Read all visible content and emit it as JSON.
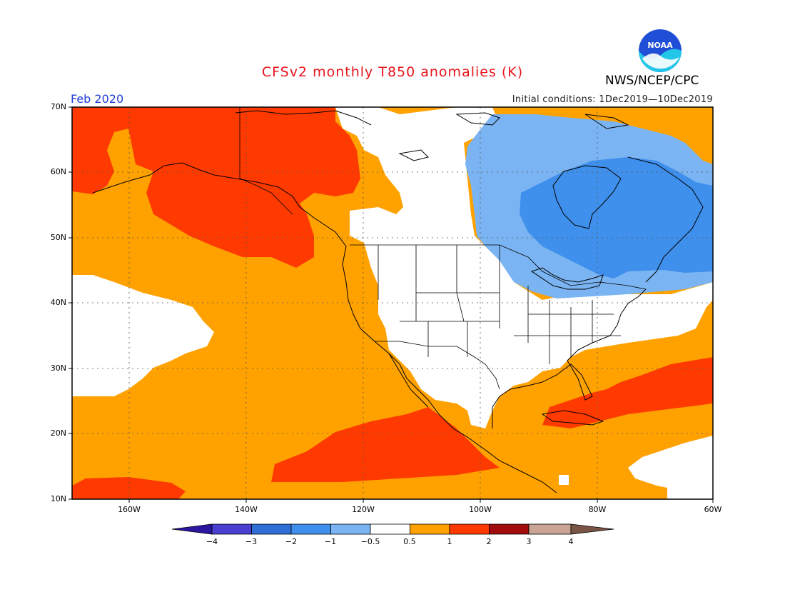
{
  "header": {
    "title": "CFSv2 monthly T850 anomalies (K)",
    "organization": "NWS/NCEP/CPC",
    "period": "Feb 2020",
    "initial_conditions": "Initial conditions: 1Dec2019—10Dec2019"
  },
  "logo": {
    "text": "NOAA",
    "icon": "noaa-logo-icon"
  },
  "axes": {
    "lat_labels": [
      "70N",
      "60N",
      "50N",
      "40N",
      "30N",
      "20N",
      "10N"
    ],
    "lon_labels": [
      "160W",
      "140W",
      "120W",
      "100W",
      "80W",
      "60W"
    ]
  },
  "colorbar": {
    "labels": [
      "−4",
      "−3",
      "−2",
      "−1",
      "−0.5",
      "0.5",
      "1",
      "2",
      "3",
      "4"
    ],
    "colors": [
      "#2b16a0",
      "#4a3fd0",
      "#2f6fd6",
      "#3f8fec",
      "#7ab4f2",
      "#ffffff",
      "#ffa200",
      "#ff3a00",
      "#a10d0d",
      "#c9a394",
      "#7a5546"
    ]
  },
  "map_colors": {
    "orange": "#ffa200",
    "red": "#ff3a00",
    "light_blue": "#7ab4f2",
    "blue": "#3f8fec",
    "white": "#ffffff"
  }
}
